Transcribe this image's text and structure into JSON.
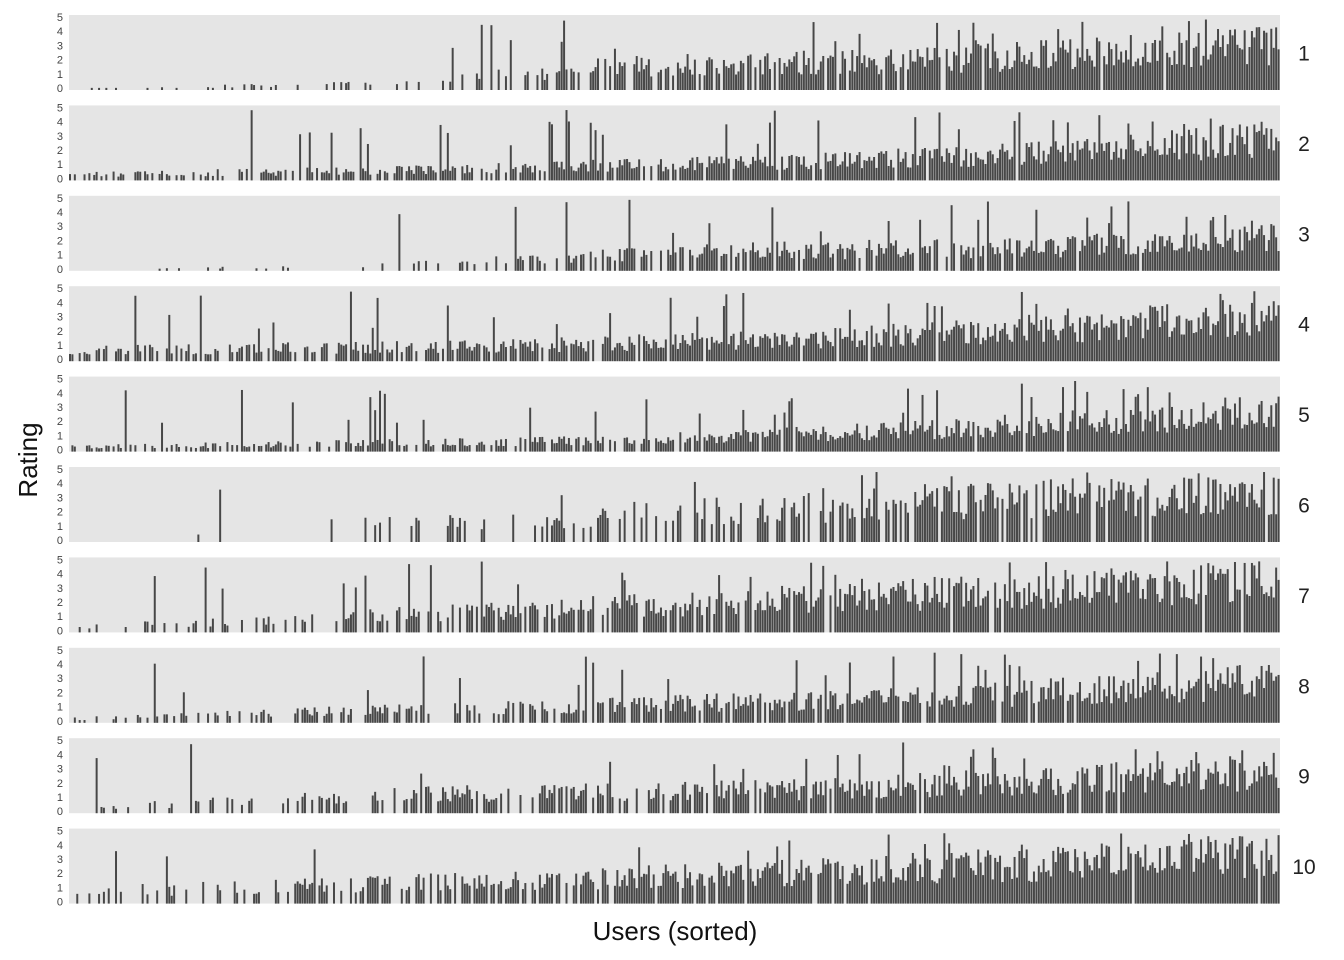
{
  "chart_data": {
    "type": "bar",
    "title": "",
    "xlabel": "Users (sorted)",
    "ylabel": "Rating",
    "ylim": [
      0,
      5
    ],
    "yticks": [
      "0",
      "1",
      "2",
      "3",
      "4",
      "5"
    ],
    "xticks_visible": false,
    "grid": false,
    "legend": "none",
    "bar_color": "#474747",
    "panel_background": "#e5e5e5",
    "n_users": 500,
    "panels": [
      {
        "label": "1",
        "profile": [
          [
            0,
            0.0
          ],
          [
            0.3,
            0.8
          ],
          [
            0.45,
            2.0
          ],
          [
            0.7,
            2.5
          ],
          [
            1,
            3.8
          ]
        ],
        "zero_start": [
          [
            0,
            0.93
          ],
          [
            0.3,
            0.8
          ],
          [
            0.5,
            0.2
          ],
          [
            0.8,
            0.05
          ],
          [
            1,
            0.0
          ]
        ]
      },
      {
        "label": "2",
        "profile": [
          [
            0,
            0.5
          ],
          [
            0.3,
            0.9
          ],
          [
            0.6,
            1.6
          ],
          [
            0.85,
            2.5
          ],
          [
            1,
            3.6
          ]
        ],
        "zero_start": [
          [
            0,
            0.55
          ],
          [
            0.3,
            0.35
          ],
          [
            0.6,
            0.08
          ],
          [
            1,
            0.0
          ]
        ]
      },
      {
        "label": "3",
        "profile": [
          [
            0,
            0.0
          ],
          [
            0.3,
            0.6
          ],
          [
            0.5,
            1.6
          ],
          [
            0.8,
            2.0
          ],
          [
            1,
            3.0
          ]
        ],
        "zero_start": [
          [
            0,
            0.95
          ],
          [
            0.3,
            0.8
          ],
          [
            0.5,
            0.3
          ],
          [
            0.8,
            0.1
          ],
          [
            1,
            0.0
          ]
        ]
      },
      {
        "label": "4",
        "profile": [
          [
            0,
            0.9
          ],
          [
            0.35,
            1.3
          ],
          [
            0.6,
            1.9
          ],
          [
            0.85,
            3.0
          ],
          [
            1,
            4.0
          ]
        ],
        "zero_start": [
          [
            0,
            0.5
          ],
          [
            0.3,
            0.22
          ],
          [
            0.6,
            0.06
          ],
          [
            1,
            0.0
          ]
        ]
      },
      {
        "label": "5",
        "profile": [
          [
            0,
            0.4
          ],
          [
            0.4,
            0.9
          ],
          [
            0.7,
            1.8
          ],
          [
            1,
            3.4
          ]
        ],
        "zero_start": [
          [
            0,
            0.5
          ],
          [
            0.4,
            0.28
          ],
          [
            0.7,
            0.06
          ],
          [
            1,
            0.0
          ]
        ]
      },
      {
        "label": "6",
        "profile": [
          [
            0,
            0.5
          ],
          [
            0.5,
            2.5
          ],
          [
            0.75,
            3.5
          ],
          [
            1,
            4.2
          ]
        ],
        "zero_start": [
          [
            0,
            0.96
          ],
          [
            0.3,
            0.85
          ],
          [
            0.5,
            0.5
          ],
          [
            0.75,
            0.15
          ],
          [
            1,
            0.02
          ]
        ]
      },
      {
        "label": "7",
        "profile": [
          [
            0,
            0.4
          ],
          [
            0.4,
            2.0
          ],
          [
            0.7,
            3.2
          ],
          [
            1,
            4.4
          ]
        ],
        "zero_start": [
          [
            0,
            0.9
          ],
          [
            0.3,
            0.45
          ],
          [
            0.6,
            0.1
          ],
          [
            1,
            0.0
          ]
        ]
      },
      {
        "label": "8",
        "profile": [
          [
            0,
            0.4
          ],
          [
            0.35,
            1.3
          ],
          [
            0.7,
            2.1
          ],
          [
            1,
            3.5
          ]
        ],
        "zero_start": [
          [
            0,
            0.7
          ],
          [
            0.3,
            0.45
          ],
          [
            0.6,
            0.1
          ],
          [
            1,
            0.0
          ]
        ]
      },
      {
        "label": "9",
        "profile": [
          [
            0,
            0.5
          ],
          [
            0.3,
            1.6
          ],
          [
            0.6,
            2.0
          ],
          [
            1,
            3.5
          ]
        ],
        "zero_start": [
          [
            0,
            0.9
          ],
          [
            0.3,
            0.5
          ],
          [
            0.6,
            0.12
          ],
          [
            1,
            0.0
          ]
        ]
      },
      {
        "label": "10",
        "profile": [
          [
            0,
            1.0
          ],
          [
            0.35,
            1.9
          ],
          [
            0.7,
            3.0
          ],
          [
            1,
            4.1
          ]
        ],
        "zero_start": [
          [
            0,
            0.85
          ],
          [
            0.25,
            0.4
          ],
          [
            0.5,
            0.1
          ],
          [
            1,
            0.0
          ]
        ]
      }
    ]
  }
}
